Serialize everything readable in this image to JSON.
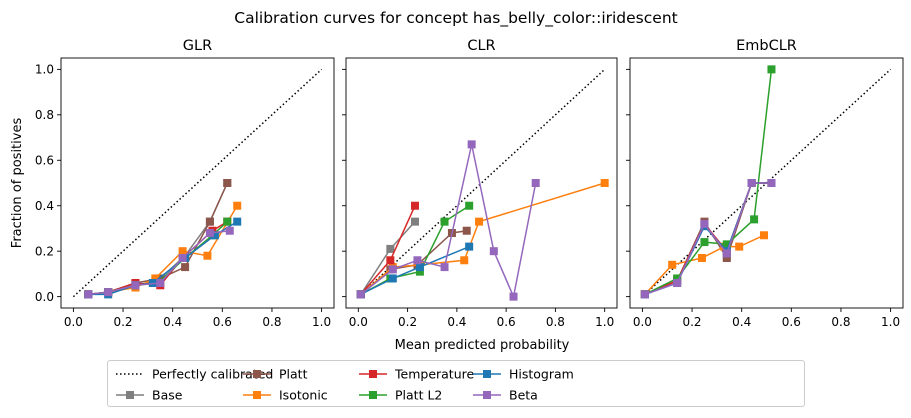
{
  "chart_data": {
    "type": "line",
    "title": "Calibration curves for concept has_belly_color::iridescent",
    "xlabel": "Mean predicted probability",
    "ylabel": "Fraction of positives",
    "xlim": [
      -0.05,
      1.05
    ],
    "ylim": [
      -0.05,
      1.05
    ],
    "xticks": [
      "0.0",
      "0.2",
      "0.4",
      "0.6",
      "0.8",
      "1.0"
    ],
    "yticks": [
      "0.0",
      "0.2",
      "0.4",
      "0.6",
      "0.8",
      "1.0"
    ],
    "grid": false,
    "legend_position": "bottom-center",
    "reference": {
      "name": "Perfectly calibrated",
      "style": "dotted",
      "color": "#000000"
    },
    "series_styles": [
      {
        "name": "Base",
        "color": "#7f7f7f"
      },
      {
        "name": "Platt",
        "color": "#8c564b"
      },
      {
        "name": "Isotonic",
        "color": "#ff7f0e"
      },
      {
        "name": "Temperature",
        "color": "#d62728"
      },
      {
        "name": "Platt L2",
        "color": "#2ca02c"
      },
      {
        "name": "Histogram",
        "color": "#1f77b4"
      },
      {
        "name": "Beta",
        "color": "#9467bd"
      }
    ],
    "legend_order": [
      "Perfectly calibrated",
      "Base",
      "Platt",
      "Isotonic",
      "Temperature",
      "Platt L2",
      "Histogram",
      "Beta"
    ],
    "panels": [
      {
        "title": "GLR",
        "series": [
          {
            "name": "Base",
            "x": [
              0.06,
              0.14,
              0.25,
              0.34,
              0.45,
              0.55,
              0.62
            ],
            "y": [
              0.01,
              0.02,
              0.05,
              0.07,
              0.18,
              0.33,
              0.5
            ]
          },
          {
            "name": "Platt",
            "x": [
              0.06,
              0.14,
              0.25,
              0.35,
              0.45,
              0.55,
              0.62
            ],
            "y": [
              0.01,
              0.02,
              0.06,
              0.08,
              0.13,
              0.33,
              0.5
            ]
          },
          {
            "name": "Isotonic",
            "x": [
              0.06,
              0.14,
              0.25,
              0.33,
              0.44,
              0.54,
              0.66
            ],
            "y": [
              0.01,
              0.02,
              0.04,
              0.08,
              0.2,
              0.18,
              0.4
            ]
          },
          {
            "name": "Temperature",
            "x": [
              0.06,
              0.14,
              0.25,
              0.35,
              0.44,
              0.56,
              0.62
            ],
            "y": [
              0.01,
              0.02,
              0.06,
              0.05,
              0.17,
              0.29,
              0.33
            ]
          },
          {
            "name": "Platt L2",
            "x": [
              0.06,
              0.14,
              0.25,
              0.34,
              0.45,
              0.56,
              0.62
            ],
            "y": [
              0.01,
              0.02,
              0.05,
              0.06,
              0.17,
              0.27,
              0.33
            ]
          },
          {
            "name": "Histogram",
            "x": [
              0.06,
              0.14,
              0.25,
              0.32,
              0.45,
              0.57,
              0.66
            ],
            "y": [
              0.01,
              0.01,
              0.05,
              0.06,
              0.17,
              0.27,
              0.33
            ]
          },
          {
            "name": "Beta",
            "x": [
              0.06,
              0.14,
              0.25,
              0.35,
              0.44,
              0.55,
              0.63
            ],
            "y": [
              0.01,
              0.02,
              0.05,
              0.06,
              0.17,
              0.28,
              0.29
            ]
          }
        ]
      },
      {
        "title": "CLR",
        "series": [
          {
            "name": "Base",
            "x": [
              0.01,
              0.13,
              0.23
            ],
            "y": [
              0.01,
              0.21,
              0.33
            ]
          },
          {
            "name": "Platt",
            "x": [
              0.01,
              0.13,
              0.24,
              0.38,
              0.44
            ],
            "y": [
              0.01,
              0.12,
              0.14,
              0.28,
              0.29
            ]
          },
          {
            "name": "Isotonic",
            "x": [
              0.01,
              0.14,
              0.25,
              0.43,
              0.49,
              1.0
            ],
            "y": [
              0.01,
              0.13,
              0.14,
              0.16,
              0.33,
              0.5
            ]
          },
          {
            "name": "Temperature",
            "x": [
              0.01,
              0.13,
              0.23
            ],
            "y": [
              0.01,
              0.16,
              0.4
            ]
          },
          {
            "name": "Platt L2",
            "x": [
              0.01,
              0.13,
              0.25,
              0.35,
              0.45
            ],
            "y": [
              0.01,
              0.08,
              0.11,
              0.33,
              0.4
            ]
          },
          {
            "name": "Histogram",
            "x": [
              0.01,
              0.14,
              0.25,
              0.45
            ],
            "y": [
              0.01,
              0.08,
              0.13,
              0.22
            ]
          },
          {
            "name": "Beta",
            "x": [
              0.01,
              0.14,
              0.24,
              0.35,
              0.46,
              0.55,
              0.63,
              0.72
            ],
            "y": [
              0.01,
              0.12,
              0.16,
              0.13,
              0.67,
              0.2,
              0.0,
              0.5
            ]
          }
        ]
      },
      {
        "title": "EmbCLR",
        "series": [
          {
            "name": "Base",
            "x": [
              0.01,
              0.14,
              0.25,
              0.34,
              0.44,
              0.52
            ],
            "y": [
              0.01,
              0.07,
              0.32,
              0.18,
              0.5,
              0.5
            ]
          },
          {
            "name": "Platt",
            "x": [
              0.01,
              0.14,
              0.25,
              0.34,
              0.44,
              0.52
            ],
            "y": [
              0.01,
              0.07,
              0.33,
              0.17,
              0.5,
              0.5
            ]
          },
          {
            "name": "Isotonic",
            "x": [
              0.01,
              0.12,
              0.24,
              0.33,
              0.39,
              0.49
            ],
            "y": [
              0.01,
              0.14,
              0.17,
              0.22,
              0.22,
              0.27
            ]
          },
          {
            "name": "Temperature",
            "x": [
              0.01,
              0.14,
              0.25,
              0.34,
              0.44,
              0.52
            ],
            "y": [
              0.01,
              0.07,
              0.32,
              0.2,
              0.5,
              0.5
            ]
          },
          {
            "name": "Platt L2",
            "x": [
              0.01,
              0.14,
              0.25,
              0.34,
              0.45,
              0.52
            ],
            "y": [
              0.01,
              0.08,
              0.24,
              0.23,
              0.34,
              1.0
            ]
          },
          {
            "name": "Histogram",
            "x": [
              0.01,
              0.14,
              0.25,
              0.34,
              0.44,
              0.52
            ],
            "y": [
              0.01,
              0.06,
              0.31,
              0.2,
              0.5,
              0.5
            ]
          },
          {
            "name": "Beta",
            "x": [
              0.01,
              0.14,
              0.25,
              0.34,
              0.44,
              0.52
            ],
            "y": [
              0.01,
              0.06,
              0.32,
              0.19,
              0.5,
              0.5
            ]
          }
        ]
      }
    ]
  }
}
